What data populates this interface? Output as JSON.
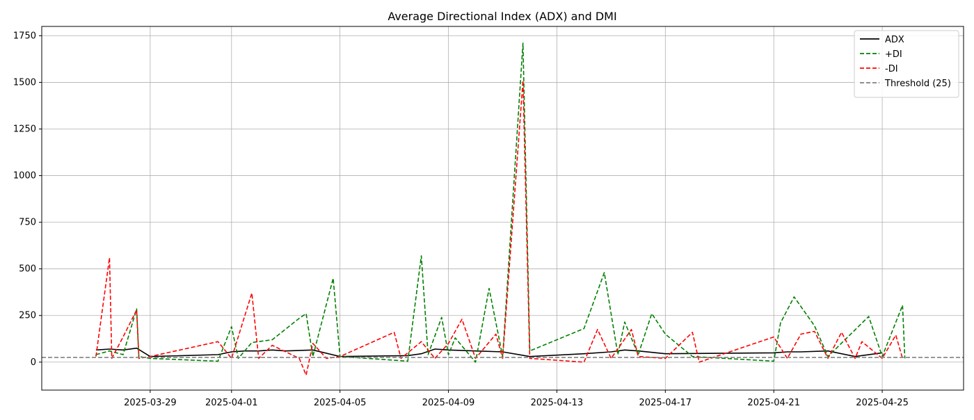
{
  "chart_data": {
    "type": "line",
    "title": "Average Directional Index (ADX) and DMI",
    "xlabel": "",
    "ylabel": "",
    "x_range": [
      "2025-03-25",
      "2025-04-28"
    ],
    "ylim": [
      -150,
      1800
    ],
    "x_ticks": [
      "2025-03-29",
      "2025-04-01",
      "2025-04-05",
      "2025-04-09",
      "2025-04-13",
      "2025-04-17",
      "2025-04-21",
      "2025-04-25"
    ],
    "y_ticks": [
      0,
      250,
      500,
      750,
      1000,
      1250,
      1500,
      1750
    ],
    "grid": true,
    "legend_position": "upper-right",
    "series": [
      {
        "name": "ADX",
        "color": "#000000",
        "style": "solid",
        "points": [
          [
            "2025-03-27 00:00",
            65
          ],
          [
            "2025-03-27 12:00",
            70
          ],
          [
            "2025-03-28 00:00",
            65
          ],
          [
            "2025-03-28 12:00",
            75
          ],
          [
            "2025-03-29 00:00",
            30
          ],
          [
            "2025-03-31 12:00",
            40
          ],
          [
            "2025-04-01 00:00",
            55
          ],
          [
            "2025-04-01 12:00",
            60
          ],
          [
            "2025-04-02 00:00",
            60
          ],
          [
            "2025-04-02 12:00",
            65
          ],
          [
            "2025-04-03 00:00",
            60
          ],
          [
            "2025-04-04 00:00",
            65
          ],
          [
            "2025-04-05 00:00",
            30
          ],
          [
            "2025-04-07 12:00",
            35
          ],
          [
            "2025-04-08 00:00",
            45
          ],
          [
            "2025-04-08 12:00",
            70
          ],
          [
            "2025-04-09 00:00",
            65
          ],
          [
            "2025-04-10 00:00",
            60
          ],
          [
            "2025-04-11 00:00",
            55
          ],
          [
            "2025-04-12 00:00",
            30
          ],
          [
            "2025-04-14 00:00",
            45
          ],
          [
            "2025-04-15 00:00",
            55
          ],
          [
            "2025-04-15 12:00",
            65
          ],
          [
            "2025-04-16 00:00",
            60
          ],
          [
            "2025-04-17 00:00",
            45
          ],
          [
            "2025-04-21 00:00",
            50
          ],
          [
            "2025-04-21 12:00",
            55
          ],
          [
            "2025-04-22 00:00",
            55
          ],
          [
            "2025-04-23 00:00",
            60
          ],
          [
            "2025-04-24 00:00",
            30
          ],
          [
            "2025-04-25 00:00",
            50
          ]
        ]
      },
      {
        "name": "+DI",
        "color": "#008000",
        "style": "dashed",
        "points": [
          [
            "2025-03-27 00:00",
            40
          ],
          [
            "2025-03-27 12:00",
            60
          ],
          [
            "2025-03-28 00:00",
            40
          ],
          [
            "2025-03-28 12:00",
            285
          ],
          [
            "2025-03-28 14:00",
            30
          ],
          [
            "2025-03-29 00:00",
            20
          ],
          [
            "2025-03-31 12:00",
            5
          ],
          [
            "2025-04-01 00:00",
            190
          ],
          [
            "2025-04-01 06:00",
            20
          ],
          [
            "2025-04-01 18:00",
            105
          ],
          [
            "2025-04-02 12:00",
            120
          ],
          [
            "2025-04-03 12:00",
            235
          ],
          [
            "2025-04-03 18:00",
            260
          ],
          [
            "2025-04-04 00:00",
            30
          ],
          [
            "2025-04-04 18:00",
            450
          ],
          [
            "2025-04-05 00:00",
            30
          ],
          [
            "2025-04-07 12:00",
            5
          ],
          [
            "2025-04-08 00:00",
            570
          ],
          [
            "2025-04-08 06:00",
            40
          ],
          [
            "2025-04-08 18:00",
            240
          ],
          [
            "2025-04-09 00:00",
            40
          ],
          [
            "2025-04-09 06:00",
            130
          ],
          [
            "2025-04-10 00:00",
            0
          ],
          [
            "2025-04-10 12:00",
            395
          ],
          [
            "2025-04-11 00:00",
            30
          ],
          [
            "2025-04-11 18:00",
            1710
          ],
          [
            "2025-04-12 00:00",
            60
          ],
          [
            "2025-04-14 00:00",
            180
          ],
          [
            "2025-04-14 18:00",
            480
          ],
          [
            "2025-04-15 06:00",
            40
          ],
          [
            "2025-04-15 12:00",
            215
          ],
          [
            "2025-04-16 00:00",
            40
          ],
          [
            "2025-04-16 12:00",
            260
          ],
          [
            "2025-04-17 00:00",
            150
          ],
          [
            "2025-04-18 00:00",
            30
          ],
          [
            "2025-04-21 00:00",
            5
          ],
          [
            "2025-04-21 06:00",
            210
          ],
          [
            "2025-04-21 18:00",
            350
          ],
          [
            "2025-04-22 12:00",
            195
          ],
          [
            "2025-04-23 00:00",
            30
          ],
          [
            "2025-04-24 12:00",
            245
          ],
          [
            "2025-04-25 00:00",
            30
          ],
          [
            "2025-04-25 18:00",
            305
          ],
          [
            "2025-04-25 20:00",
            20
          ]
        ]
      },
      {
        "name": "-DI",
        "color": "#ff0000",
        "style": "dashed",
        "points": [
          [
            "2025-03-27 00:00",
            30
          ],
          [
            "2025-03-27 12:00",
            560
          ],
          [
            "2025-03-27 14:00",
            20
          ],
          [
            "2025-03-28 00:00",
            135
          ],
          [
            "2025-03-28 12:00",
            280
          ],
          [
            "2025-03-28 14:00",
            20
          ],
          [
            "2025-03-29 00:00",
            30
          ],
          [
            "2025-03-31 12:00",
            110
          ],
          [
            "2025-04-01 00:00",
            20
          ],
          [
            "2025-04-01 18:00",
            370
          ],
          [
            "2025-04-02 00:00",
            20
          ],
          [
            "2025-04-02 12:00",
            90
          ],
          [
            "2025-04-03 12:00",
            20
          ],
          [
            "2025-04-03 18:00",
            -70
          ],
          [
            "2025-04-04 00:00",
            100
          ],
          [
            "2025-04-04 12:00",
            20
          ],
          [
            "2025-04-05 00:00",
            30
          ],
          [
            "2025-04-07 00:00",
            160
          ],
          [
            "2025-04-07 06:00",
            20
          ],
          [
            "2025-04-08 00:00",
            110
          ],
          [
            "2025-04-08 12:00",
            20
          ],
          [
            "2025-04-09 00:00",
            100
          ],
          [
            "2025-04-09 12:00",
            230
          ],
          [
            "2025-04-10 00:00",
            20
          ],
          [
            "2025-04-10 18:00",
            150
          ],
          [
            "2025-04-11 00:00",
            20
          ],
          [
            "2025-04-11 18:00",
            1510
          ],
          [
            "2025-04-12 00:00",
            20
          ],
          [
            "2025-04-14 00:00",
            0
          ],
          [
            "2025-04-14 12:00",
            175
          ],
          [
            "2025-04-15 00:00",
            20
          ],
          [
            "2025-04-15 18:00",
            175
          ],
          [
            "2025-04-16 00:00",
            30
          ],
          [
            "2025-04-17 00:00",
            20
          ],
          [
            "2025-04-18 00:00",
            160
          ],
          [
            "2025-04-18 06:00",
            0
          ],
          [
            "2025-04-21 00:00",
            135
          ],
          [
            "2025-04-21 12:00",
            20
          ],
          [
            "2025-04-22 00:00",
            150
          ],
          [
            "2025-04-22 12:00",
            165
          ],
          [
            "2025-04-23 00:00",
            20
          ],
          [
            "2025-04-23 12:00",
            160
          ],
          [
            "2025-04-24 00:00",
            20
          ],
          [
            "2025-04-24 06:00",
            110
          ],
          [
            "2025-04-25 00:00",
            20
          ],
          [
            "2025-04-25 12:00",
            145
          ],
          [
            "2025-04-25 18:00",
            20
          ]
        ]
      },
      {
        "name": "Threshold (25)",
        "color": "#808080",
        "style": "dashed",
        "constant": 25
      }
    ]
  }
}
